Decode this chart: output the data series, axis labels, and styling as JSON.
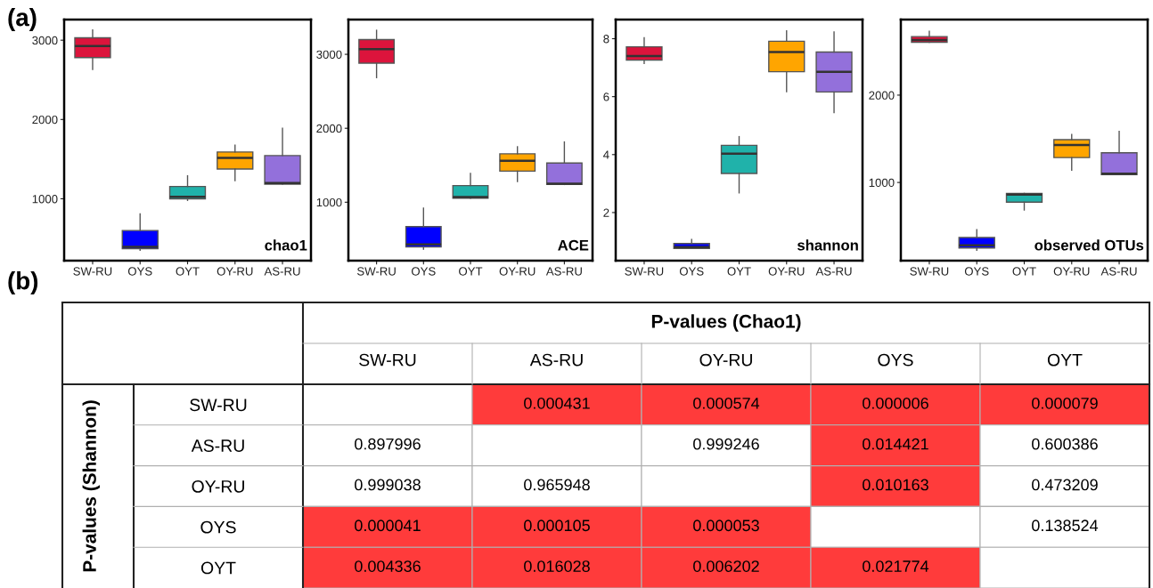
{
  "chart_data": [
    {
      "type": "box",
      "title": "(a)",
      "annotations": [
        "chao1"
      ],
      "categories": [
        "SW-RU",
        "OYS",
        "OYT",
        "OY-RU",
        "AS-RU"
      ],
      "colors": [
        "#dc143c",
        "#0000ff",
        "#20b2aa",
        "#ffa500",
        "#9370db"
      ],
      "ylim": [
        220,
        3260
      ],
      "yticks": [
        1000,
        2000,
        3000
      ],
      "boxes": [
        {
          "low": 2630,
          "q1": 2780,
          "median": 2925,
          "q3": 3030,
          "high": 3130
        },
        {
          "low": 350,
          "q1": 370,
          "median": 395,
          "q3": 600,
          "high": 810
        },
        {
          "low": 980,
          "q1": 1000,
          "median": 1025,
          "q3": 1155,
          "high": 1290
        },
        {
          "low": 1230,
          "q1": 1375,
          "median": 1515,
          "q3": 1590,
          "high": 1675
        },
        {
          "low": 1185,
          "q1": 1185,
          "median": 1200,
          "q3": 1545,
          "high": 1890
        }
      ]
    },
    {
      "type": "box",
      "annotations": [
        "ACE"
      ],
      "categories": [
        "SW-RU",
        "OYS",
        "OYT",
        "OY-RU",
        "AS-RU"
      ],
      "colors": [
        "#dc143c",
        "#0000ff",
        "#20b2aa",
        "#ffa500",
        "#9370db"
      ],
      "ylim": [
        210,
        3470
      ],
      "yticks": [
        1000,
        2000,
        3000
      ],
      "boxes": [
        {
          "low": 2685,
          "q1": 2880,
          "median": 3070,
          "q3": 3200,
          "high": 3325
        },
        {
          "low": 365,
          "q1": 395,
          "median": 430,
          "q3": 670,
          "high": 920
        },
        {
          "low": 1055,
          "q1": 1055,
          "median": 1070,
          "q3": 1225,
          "high": 1390
        },
        {
          "low": 1280,
          "q1": 1420,
          "median": 1560,
          "q3": 1655,
          "high": 1750
        },
        {
          "low": 1240,
          "q1": 1240,
          "median": 1250,
          "q3": 1530,
          "high": 1815
        }
      ]
    },
    {
      "type": "box",
      "annotations": [
        "shannon"
      ],
      "categories": [
        "SW-RU",
        "OYS",
        "OYT",
        "OY-RU",
        "AS-RU"
      ],
      "colors": [
        "#dc143c",
        "#0000ff",
        "#20b2aa",
        "#ffa500",
        "#9370db"
      ],
      "ylim": [
        0.34,
        8.66
      ],
      "yticks": [
        2,
        4,
        6,
        8
      ],
      "boxes": [
        {
          "low": 7.15,
          "q1": 7.26,
          "median": 7.4,
          "q3": 7.72,
          "high": 8.03
        },
        {
          "low": 0.76,
          "q1": 0.76,
          "median": 0.81,
          "q3": 0.93,
          "high": 1.07
        },
        {
          "low": 2.68,
          "q1": 3.35,
          "median": 4.03,
          "q3": 4.32,
          "high": 4.62
        },
        {
          "low": 6.17,
          "q1": 6.86,
          "median": 7.54,
          "q3": 7.91,
          "high": 8.27
        },
        {
          "low": 5.45,
          "q1": 6.16,
          "median": 6.86,
          "q3": 7.54,
          "high": 8.23
        }
      ]
    },
    {
      "type": "box",
      "annotations": [
        "observed OTUs"
      ],
      "categories": [
        "SW-RU",
        "OYS",
        "OYT",
        "OY-RU",
        "AS-RU"
      ],
      "colors": [
        "#dc143c",
        "#0000ff",
        "#20b2aa",
        "#ffa500",
        "#9370db"
      ],
      "ylim": [
        105,
        2865
      ],
      "yticks": [
        1000,
        2000
      ],
      "boxes": [
        {
          "low": 2605,
          "q1": 2605,
          "median": 2630,
          "q3": 2670,
          "high": 2730
        },
        {
          "low": 225,
          "q1": 250,
          "median": 280,
          "q3": 370,
          "high": 460
        },
        {
          "low": 685,
          "q1": 775,
          "median": 860,
          "q3": 875,
          "high": 875
        },
        {
          "low": 1140,
          "q1": 1285,
          "median": 1430,
          "q3": 1490,
          "high": 1550
        },
        {
          "low": 1090,
          "q1": 1090,
          "median": 1100,
          "q3": 1340,
          "high": 1585
        }
      ]
    },
    {
      "type": "heatmap",
      "title": "P-values (Chao1)",
      "ylabel": "P-values (Shannon)",
      "annotations": [
        "(b)"
      ],
      "categories": [
        "SW-RU",
        "AS-RU",
        "OY-RU",
        "OYS",
        "OYT"
      ],
      "y_categories": [
        "SW-RU",
        "AS-RU",
        "OY-RU",
        "OYS",
        "OYT"
      ],
      "cells": [
        [
          null,
          0.000431,
          0.000574,
          6e-06,
          7.9e-05
        ],
        [
          0.897996,
          null,
          0.999246,
          0.014421,
          0.600386
        ],
        [
          0.999038,
          0.965948,
          null,
          0.010163,
          0.473209
        ],
        [
          4.1e-05,
          0.000105,
          5.3e-05,
          null,
          0.138524
        ],
        [
          0.004336,
          0.016028,
          0.006202,
          0.021774,
          null
        ]
      ],
      "cell_labels": [
        [
          null,
          "0.000431",
          "0.000574",
          "0.000006",
          "0.000079"
        ],
        [
          "0.897996",
          null,
          "0.999246",
          "0.014421",
          "0.600386"
        ],
        [
          "0.999038",
          "0.965948",
          null,
          "0.010163",
          "0.473209"
        ],
        [
          "0.000041",
          "0.000105",
          "0.000053",
          null,
          "0.138524"
        ],
        [
          "0.004336",
          "0.016028",
          "0.006202",
          "0.021774",
          null
        ]
      ],
      "colors": [
        [
          "#ffffff",
          "#ff3b3b",
          "#ff3b3b",
          "#ff3b3b",
          "#ff3b3b"
        ],
        [
          "#ffffff",
          "#ffffff",
          "#ffffff",
          "#ff3b3b",
          "#ffffff"
        ],
        [
          "#ffffff",
          "#ffffff",
          "#ffffff",
          "#ff3b3b",
          "#ffffff"
        ],
        [
          "#ff3b3b",
          "#ff3b3b",
          "#ff3b3b",
          "#ffffff",
          "#ffffff"
        ],
        [
          "#ff3b3b",
          "#ff3b3b",
          "#ff3b3b",
          "#ff3b3b",
          "#ffffff"
        ]
      ]
    }
  ]
}
